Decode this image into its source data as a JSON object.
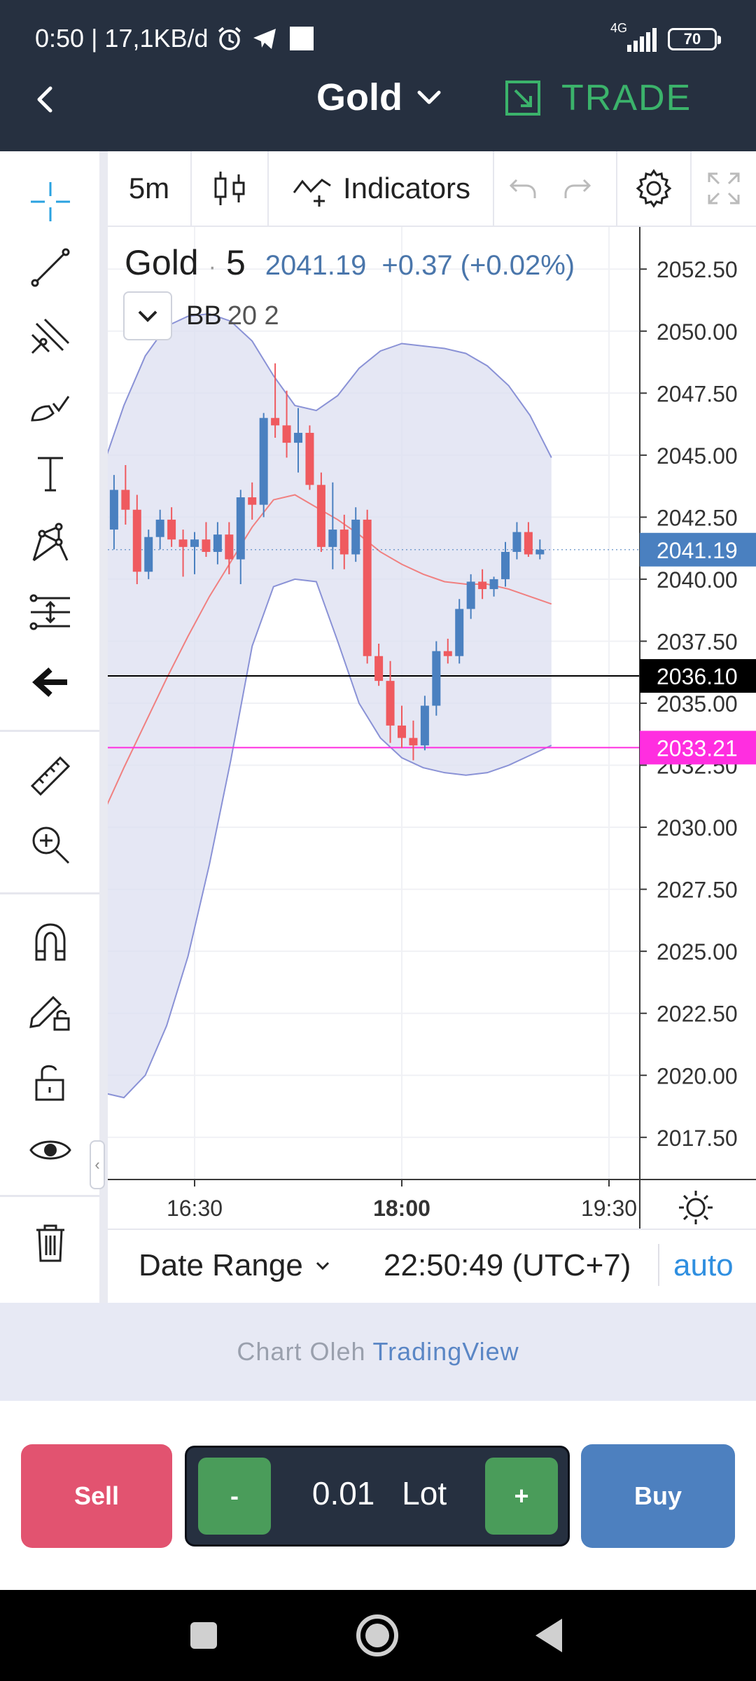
{
  "status_bar": {
    "text": "0:50 | 17,1KB/d",
    "network": "4G",
    "battery": "70"
  },
  "header": {
    "symbol": "Gold",
    "trade_label": "TRADE",
    "colors": {
      "background": "#263040",
      "trade": "#3bb36b"
    }
  },
  "chart_toolbar": {
    "interval": "5m",
    "indicators_label": "Indicators"
  },
  "legend": {
    "symbol": "Gold",
    "interval": "5",
    "price": "2041.19",
    "change": "+0.37 (+0.02%)",
    "indicator_name": "BB",
    "indicator_params": "20 2"
  },
  "chart_data": {
    "type": "candlestick",
    "y_ticks": [
      "2052.50",
      "2050.00",
      "2047.50",
      "2045.00",
      "2042.50",
      "2040.00",
      "2037.50",
      "2035.00",
      "2032.50",
      "2030.00",
      "2027.50",
      "2025.00",
      "2022.50",
      "2020.00",
      "2017.50"
    ],
    "x_ticks": [
      "16:30",
      "18:00",
      "19:30"
    ],
    "ylim": [
      2015.8,
      2054.2
    ],
    "price_labels": [
      {
        "text": "2041.19",
        "value": 2041.19,
        "color": "#4a80c0"
      },
      {
        "text": "2036.10",
        "value": 2036.1,
        "color": "#000000"
      },
      {
        "text": "2033.21",
        "value": 2033.21,
        "color": "#ff2ee0"
      }
    ],
    "candles": [
      {
        "t": "15:55",
        "o": 2042.0,
        "h": 2044.2,
        "l": 2041.2,
        "c": 2043.6
      },
      {
        "t": "16:00",
        "o": 2043.6,
        "h": 2044.6,
        "l": 2042.2,
        "c": 2042.8
      },
      {
        "t": "16:05",
        "o": 2042.8,
        "h": 2043.4,
        "l": 2039.8,
        "c": 2040.3
      },
      {
        "t": "16:10",
        "o": 2040.3,
        "h": 2042.0,
        "l": 2040.0,
        "c": 2041.7
      },
      {
        "t": "16:15",
        "o": 2041.7,
        "h": 2042.8,
        "l": 2041.2,
        "c": 2042.4
      },
      {
        "t": "16:20",
        "o": 2042.4,
        "h": 2042.9,
        "l": 2041.3,
        "c": 2041.6
      },
      {
        "t": "16:25",
        "o": 2041.6,
        "h": 2042.0,
        "l": 2040.1,
        "c": 2041.3
      },
      {
        "t": "16:30",
        "o": 2041.3,
        "h": 2041.9,
        "l": 2040.2,
        "c": 2041.6
      },
      {
        "t": "16:35",
        "o": 2041.6,
        "h": 2042.3,
        "l": 2040.9,
        "c": 2041.1
      },
      {
        "t": "16:40",
        "o": 2041.1,
        "h": 2042.3,
        "l": 2040.6,
        "c": 2041.8
      },
      {
        "t": "16:45",
        "o": 2041.8,
        "h": 2042.3,
        "l": 2040.2,
        "c": 2040.8
      },
      {
        "t": "16:50",
        "o": 2040.8,
        "h": 2043.6,
        "l": 2039.8,
        "c": 2043.3
      },
      {
        "t": "16:55",
        "o": 2043.3,
        "h": 2043.9,
        "l": 2042.4,
        "c": 2043.0
      },
      {
        "t": "17:00",
        "o": 2043.0,
        "h": 2046.7,
        "l": 2042.5,
        "c": 2046.5
      },
      {
        "t": "17:05",
        "o": 2046.5,
        "h": 2048.7,
        "l": 2045.7,
        "c": 2046.2
      },
      {
        "t": "17:10",
        "o": 2046.2,
        "h": 2047.6,
        "l": 2044.9,
        "c": 2045.5
      },
      {
        "t": "17:15",
        "o": 2045.5,
        "h": 2046.9,
        "l": 2044.3,
        "c": 2045.9
      },
      {
        "t": "17:20",
        "o": 2045.9,
        "h": 2046.2,
        "l": 2043.6,
        "c": 2043.8
      },
      {
        "t": "17:25",
        "o": 2043.8,
        "h": 2044.3,
        "l": 2041.1,
        "c": 2041.3
      },
      {
        "t": "17:30",
        "o": 2041.3,
        "h": 2043.9,
        "l": 2040.4,
        "c": 2042.0
      },
      {
        "t": "17:35",
        "o": 2042.0,
        "h": 2042.6,
        "l": 2040.4,
        "c": 2041.0
      },
      {
        "t": "17:40",
        "o": 2041.0,
        "h": 2042.9,
        "l": 2040.7,
        "c": 2042.4
      },
      {
        "t": "17:45",
        "o": 2042.4,
        "h": 2042.8,
        "l": 2036.6,
        "c": 2036.9
      },
      {
        "t": "17:50",
        "o": 2036.9,
        "h": 2037.4,
        "l": 2035.7,
        "c": 2035.9
      },
      {
        "t": "17:55",
        "o": 2035.9,
        "h": 2036.7,
        "l": 2033.4,
        "c": 2034.1
      },
      {
        "t": "18:00",
        "o": 2034.1,
        "h": 2034.9,
        "l": 2033.2,
        "c": 2033.6
      },
      {
        "t": "18:05",
        "o": 2033.6,
        "h": 2034.3,
        "l": 2032.7,
        "c": 2033.3
      },
      {
        "t": "18:10",
        "o": 2033.3,
        "h": 2035.3,
        "l": 2033.1,
        "c": 2034.9
      },
      {
        "t": "18:15",
        "o": 2034.9,
        "h": 2037.5,
        "l": 2034.5,
        "c": 2037.1
      },
      {
        "t": "18:20",
        "o": 2037.1,
        "h": 2037.6,
        "l": 2036.6,
        "c": 2036.9
      },
      {
        "t": "18:25",
        "o": 2036.9,
        "h": 2039.2,
        "l": 2036.6,
        "c": 2038.8
      },
      {
        "t": "18:30",
        "o": 2038.8,
        "h": 2040.2,
        "l": 2038.4,
        "c": 2039.9
      },
      {
        "t": "18:35",
        "o": 2039.9,
        "h": 2040.4,
        "l": 2039.2,
        "c": 2039.6
      },
      {
        "t": "18:40",
        "o": 2039.6,
        "h": 2040.1,
        "l": 2039.3,
        "c": 2040.0
      },
      {
        "t": "18:45",
        "o": 2040.0,
        "h": 2041.5,
        "l": 2039.7,
        "c": 2041.1
      },
      {
        "t": "18:50",
        "o": 2041.1,
        "h": 2042.3,
        "l": 2040.8,
        "c": 2041.9
      },
      {
        "t": "18:55",
        "o": 2041.9,
        "h": 2042.3,
        "l": 2040.9,
        "c": 2041.0
      },
      {
        "t": "19:00",
        "o": 2041.0,
        "h": 2041.6,
        "l": 2040.8,
        "c": 2041.19
      }
    ],
    "bollinger": {
      "upper": [
        2044.5,
        2047.0,
        2049.0,
        2050.2,
        2050.6,
        2050.7,
        2050.4,
        2049.6,
        2048.2,
        2047.0,
        2046.8,
        2047.4,
        2048.5,
        2049.2,
        2049.5,
        2049.4,
        2049.3,
        2049.1,
        2048.6,
        2047.8,
        2046.6,
        2044.9
      ],
      "middle": [
        2030.5,
        2032.4,
        2034.2,
        2036.0,
        2037.7,
        2039.3,
        2040.7,
        2042.1,
        2043.2,
        2043.4,
        2042.9,
        2042.4,
        2041.8,
        2041.1,
        2040.6,
        2040.2,
        2039.9,
        2039.8,
        2039.8,
        2039.6,
        2039.3,
        2039.0
      ],
      "lower": [
        2019.3,
        2019.1,
        2020.0,
        2022.0,
        2024.8,
        2028.5,
        2032.7,
        2037.3,
        2039.7,
        2040.0,
        2039.9,
        2037.5,
        2035.0,
        2033.6,
        2032.8,
        2032.4,
        2032.2,
        2032.1,
        2032.2,
        2032.5,
        2032.9,
        2033.3
      ]
    },
    "colors": {
      "up": "#4a80c0",
      "down": "#ef5a5f",
      "band_fill": "#dcdff0",
      "band_line": "#8a92d6",
      "middle_line": "#f08080"
    }
  },
  "chart_footer": {
    "date_range_label": "Date Range",
    "clock": "22:50:49 (UTC+7)",
    "auto_label": "auto"
  },
  "attribution": {
    "prefix": "Chart Oleh",
    "brand": "TradingView"
  },
  "order_bar": {
    "sell_label": "Sell",
    "buy_label": "Buy",
    "minus_label": "-",
    "plus_label": "+",
    "lot_value": "0.01",
    "lot_unit": "Lot",
    "colors": {
      "sell": "#e25370",
      "buy": "#4d80bf",
      "stepper": "#4a9c5a"
    }
  }
}
